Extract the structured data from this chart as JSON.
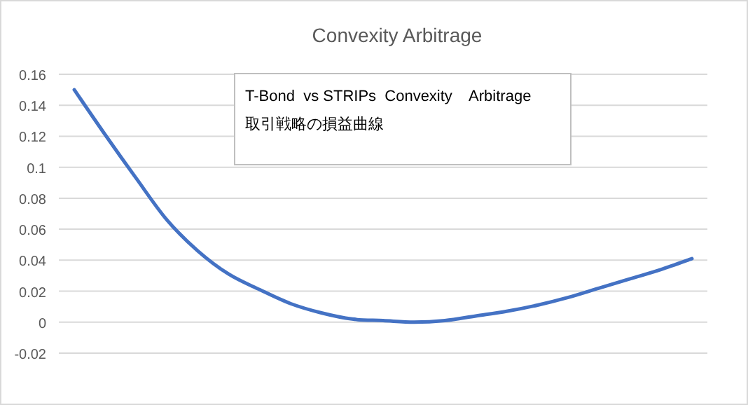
{
  "chart_data": {
    "type": "line",
    "title": "Convexity Arbitrage",
    "annotations": [
      "T-Bond  vs STRIPs  Convexity    Arbitrage",
      "取引戦略の損益曲線"
    ],
    "categories": [
      null,
      null,
      null,
      null,
      null,
      null,
      null,
      null,
      null,
      null,
      null,
      null,
      null,
      null,
      null,
      null,
      null,
      null,
      null,
      null,
      null
    ],
    "series": [
      {
        "color": "#4472c4",
        "values": [
          0.15,
          0.121,
          0.093,
          0.066,
          0.046,
          0.031,
          0.021,
          0.012,
          0.006,
          0.002,
          0.001,
          0,
          0.001,
          0.004,
          0.007,
          0.011,
          0.016,
          0.022,
          0.028,
          0.034,
          0.041
        ]
      }
    ],
    "ylim": [
      -0.02,
      0.16
    ],
    "yticks": [
      -0.02,
      0,
      0.02,
      0.04,
      0.06,
      0.08,
      0.1,
      0.12,
      0.14,
      0.16
    ],
    "grid": "y",
    "tick_labels": "y",
    "marker": "none",
    "line_style": "solid"
  }
}
